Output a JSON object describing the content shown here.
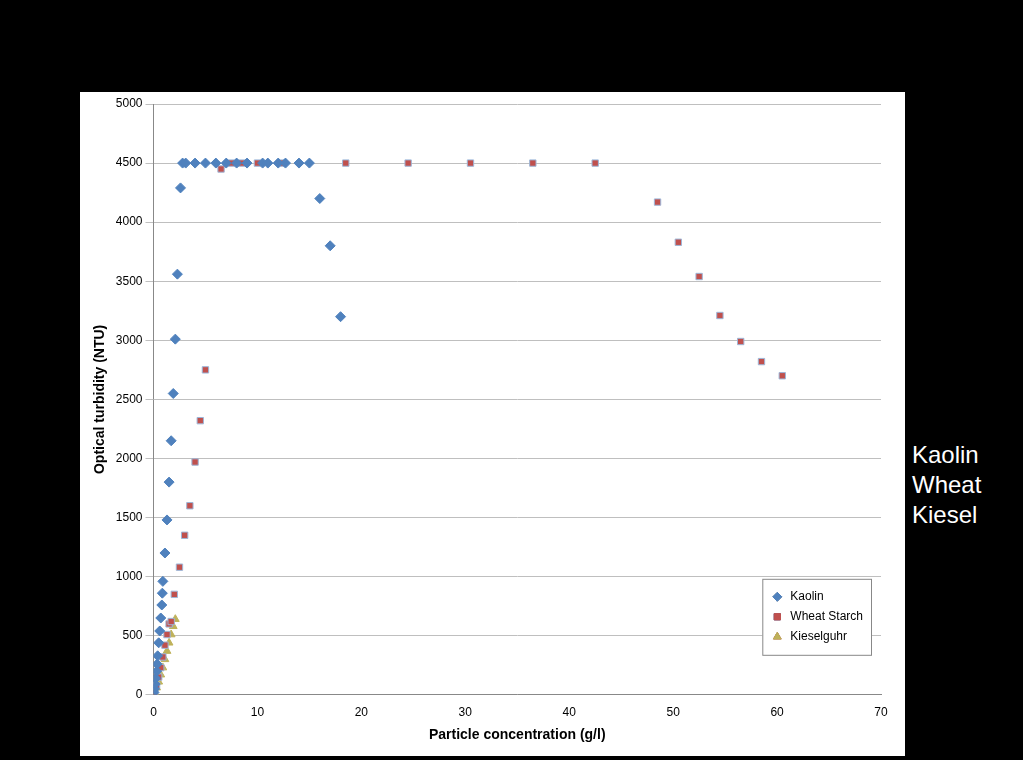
{
  "chart_data": {
    "type": "scatter",
    "x_label": "Particle concentration (g/l)",
    "y_label": "Optical turbidity (NTU)",
    "xlim": [
      0,
      70
    ],
    "xticks": [
      0,
      10,
      20,
      30,
      40,
      50,
      60,
      70
    ],
    "ylim": [
      0,
      5000
    ],
    "yticks": [
      0,
      500,
      1000,
      1500,
      2000,
      2500,
      3000,
      3500,
      4000,
      4500,
      5000
    ],
    "grid": "y",
    "legend": "lower right",
    "annotations": [
      "Kaolin",
      "Wheat",
      "Kiesel"
    ],
    "series": [
      {
        "name": "Kaolin",
        "color": "#4f81bd",
        "marker": "diamond",
        "x": [
          0.05,
          0.1,
          0.15,
          0.2,
          0.3,
          0.35,
          0.4,
          0.5,
          0.6,
          0.7,
          0.8,
          0.85,
          0.9,
          1.1,
          1.3,
          1.5,
          1.7,
          1.9,
          2.1,
          2.3,
          2.6,
          2.8,
          3.1,
          4,
          5,
          6,
          7,
          8,
          9,
          10.5,
          11,
          12,
          12.7,
          14,
          15,
          16,
          17,
          18
        ],
        "values": [
          20,
          50,
          90,
          140,
          200,
          260,
          330,
          440,
          540,
          650,
          760,
          860,
          960,
          1200,
          1480,
          1800,
          2150,
          2550,
          3010,
          3560,
          4290,
          4500,
          4500,
          4500,
          4500,
          4500,
          4500,
          4500,
          4500,
          4500,
          4500,
          4500,
          4500,
          4500,
          4500,
          4200,
          3800,
          3200
        ]
      },
      {
        "name": "Wheat Starch",
        "color": "#c0504d",
        "marker": "square",
        "x": [
          0.1,
          0.3,
          0.5,
          0.7,
          0.9,
          1.1,
          1.3,
          1.5,
          1.7,
          2,
          2.5,
          3,
          3.5,
          4,
          4.5,
          5,
          6.5,
          7.5,
          8.5,
          10,
          12.5,
          18.5,
          24.5,
          30.5,
          36.5,
          42.5,
          48.5,
          50.5,
          52.5,
          54.5,
          56.5,
          58.5,
          60.5
        ],
        "values": [
          20,
          80,
          150,
          230,
          320,
          420,
          510,
          600,
          620,
          850,
          1080,
          1350,
          1600,
          1970,
          2320,
          2750,
          4450,
          4500,
          4500,
          4500,
          4500,
          4500,
          4500,
          4500,
          4500,
          4500,
          4170,
          3830,
          3540,
          3210,
          2990,
          2820,
          2700
        ]
      },
      {
        "name": "Kieselguhr",
        "color": "#bfb25a",
        "marker": "triangle",
        "x": [
          0.1,
          0.3,
          0.5,
          0.7,
          0.9,
          1.1,
          1.3,
          1.5,
          1.7,
          1.9,
          2.1
        ],
        "values": [
          20,
          60,
          110,
          170,
          230,
          300,
          370,
          440,
          510,
          580,
          640
        ]
      }
    ]
  }
}
